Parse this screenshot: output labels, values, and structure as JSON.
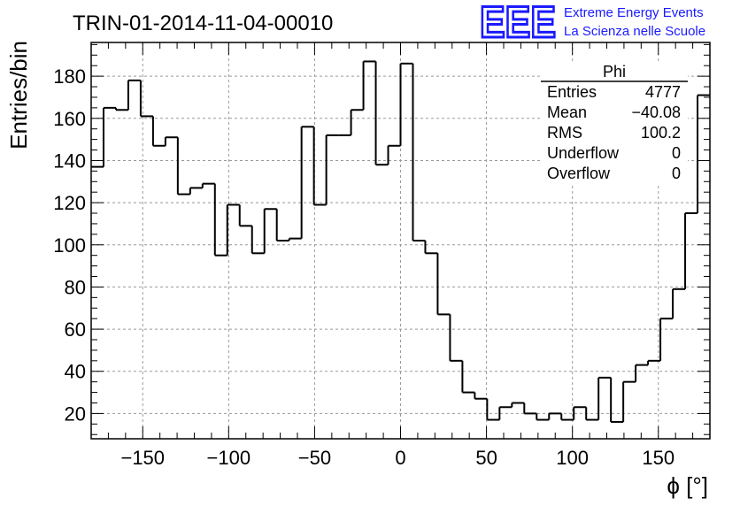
{
  "chart_data": {
    "type": "bar",
    "title": "TRIN-01-2014-11-04-00010",
    "xlabel": "ϕ [°]",
    "ylabel": "Entries/bin",
    "xlim": [
      -180,
      180
    ],
    "ylim": [
      8,
      196
    ],
    "grid": true,
    "bin_edges_start": -180,
    "bin_width": 7.2,
    "values": [
      137,
      165,
      164,
      178,
      161,
      147,
      151,
      124,
      127,
      129,
      95,
      119,
      109,
      96,
      117,
      102,
      103,
      156,
      119,
      152,
      152,
      164,
      187,
      138,
      147,
      186,
      102,
      96,
      67,
      45,
      30,
      27,
      17,
      23,
      25,
      20,
      17,
      20,
      17,
      23,
      17,
      37,
      16,
      35,
      43,
      45,
      65,
      79,
      115,
      171
    ],
    "xticks": [
      "−150",
      "−100",
      "−50",
      "0",
      "50",
      "100",
      "150"
    ],
    "xtick_values": [
      -150,
      -100,
      -50,
      0,
      50,
      100,
      150
    ],
    "yticks": [
      "20",
      "40",
      "60",
      "80",
      "100",
      "120",
      "140",
      "160",
      "180"
    ],
    "ytick_values": [
      20,
      40,
      60,
      80,
      100,
      120,
      140,
      160,
      180
    ]
  },
  "stats_box": {
    "title": "Phi",
    "rows": [
      {
        "label": "Entries",
        "value": "4777"
      },
      {
        "label": "Mean",
        "value": "−40.08"
      },
      {
        "label": "RMS",
        "value": "100.2"
      },
      {
        "label": "Underflow",
        "value": "0"
      },
      {
        "label": "Overflow",
        "value": "0"
      }
    ]
  },
  "logo": {
    "mark": "EEE",
    "line1": "Extreme Energy Events",
    "line2": "La Scienza nelle Scuole",
    "color": "#1a1aff"
  },
  "colors": {
    "histogram": "#000000",
    "grid": "#999999"
  }
}
